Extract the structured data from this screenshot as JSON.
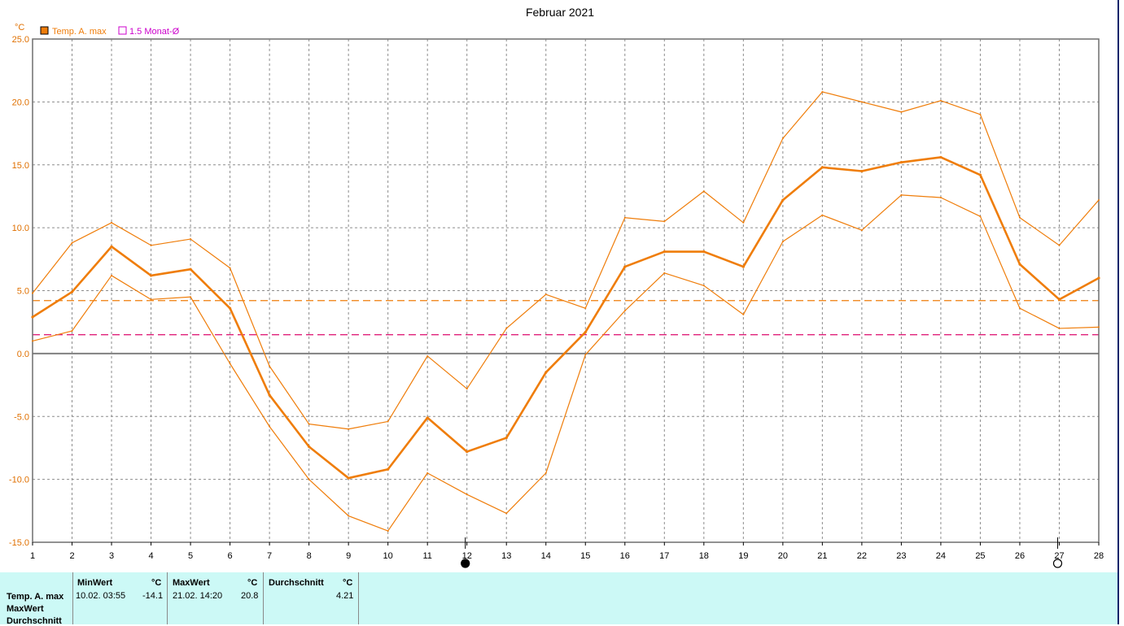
{
  "chart_data": {
    "type": "line",
    "title": "Februar 2021",
    "yunit": "°C",
    "ylim": [
      -15,
      25
    ],
    "yticks": [
      "25.0",
      "20.0",
      "15.0",
      "10.0",
      "5.0",
      "0.0",
      "-5.0",
      "-10.0",
      "-15.0"
    ],
    "ytick_values": [
      25,
      20,
      15,
      10,
      5,
      0,
      -5,
      -10,
      -15
    ],
    "xlim": [
      1,
      28
    ],
    "x": [
      1,
      2,
      3,
      4,
      5,
      6,
      7,
      8,
      9,
      10,
      11,
      12,
      13,
      14,
      15,
      16,
      17,
      18,
      19,
      20,
      21,
      22,
      23,
      24,
      25,
      26,
      27,
      28
    ],
    "legend": [
      {
        "name": "Temp. A. max",
        "color": "#ff8000",
        "marker": "filled-square"
      },
      {
        "name": "1.5 Monat-Ø",
        "color": "#cc00cc",
        "marker": "open-square"
      }
    ],
    "legend_position": "top-left",
    "grid": true,
    "series": [
      {
        "name": "Temp. A. max",
        "role": "mean",
        "color": "#ef7d0a",
        "values": [
          2.9,
          4.9,
          8.5,
          6.2,
          6.7,
          3.6,
          -3.3,
          -7.4,
          -9.9,
          -9.2,
          -5.1,
          -7.8,
          -6.7,
          -1.5,
          1.7,
          6.9,
          8.1,
          8.1,
          6.9,
          12.2,
          14.8,
          14.5,
          15.2,
          15.6,
          14.2,
          7.1,
          4.3,
          6.0
        ]
      },
      {
        "role": "upper",
        "color": "#ef7d0a",
        "values": [
          4.8,
          8.8,
          10.4,
          8.6,
          9.1,
          6.8,
          -1.0,
          -5.6,
          -6.0,
          -5.4,
          -0.2,
          -2.8,
          2.0,
          4.7,
          3.6,
          10.8,
          10.5,
          12.9,
          10.4,
          17.1,
          20.8,
          20.0,
          19.2,
          20.1,
          19.0,
          10.8,
          8.6,
          12.2
        ]
      },
      {
        "role": "lower",
        "color": "#ef7d0a",
        "values": [
          1.0,
          1.8,
          6.2,
          4.3,
          4.5,
          -0.8,
          -5.8,
          -10.0,
          -12.9,
          -14.1,
          -9.5,
          -11.2,
          -12.7,
          -9.5,
          -0.1,
          3.4,
          6.4,
          5.4,
          3.1,
          8.9,
          11.0,
          9.8,
          12.6,
          12.4,
          10.9,
          3.6,
          2.0,
          2.1
        ]
      }
    ],
    "reference_lines": [
      {
        "label": "Temp. A. max Ø",
        "value": 4.21,
        "color": "#ef7d0a",
        "style": "dashed"
      },
      {
        "label": "1.5 Monat-Ø",
        "value": 1.5,
        "color": "#e0207a",
        "style": "dashed"
      }
    ],
    "moon_phases": [
      {
        "x": 12,
        "phase": "new-moon-icon"
      },
      {
        "x": 27,
        "phase": "full-moon-icon"
      }
    ]
  },
  "stats": {
    "row_labels": [
      "Temp. A. max",
      "MaxWert",
      "Durchschnitt"
    ],
    "min": {
      "header": "MinWert",
      "unit": "°C",
      "datetime": "10.02.  03:55",
      "value": "-14.1"
    },
    "max": {
      "header": "MaxWert",
      "unit": "°C",
      "datetime": "21.02.  14:20",
      "value": "20.8"
    },
    "avg": {
      "header": "Durchschnitt",
      "unit": "°C",
      "value": "4.21"
    }
  }
}
